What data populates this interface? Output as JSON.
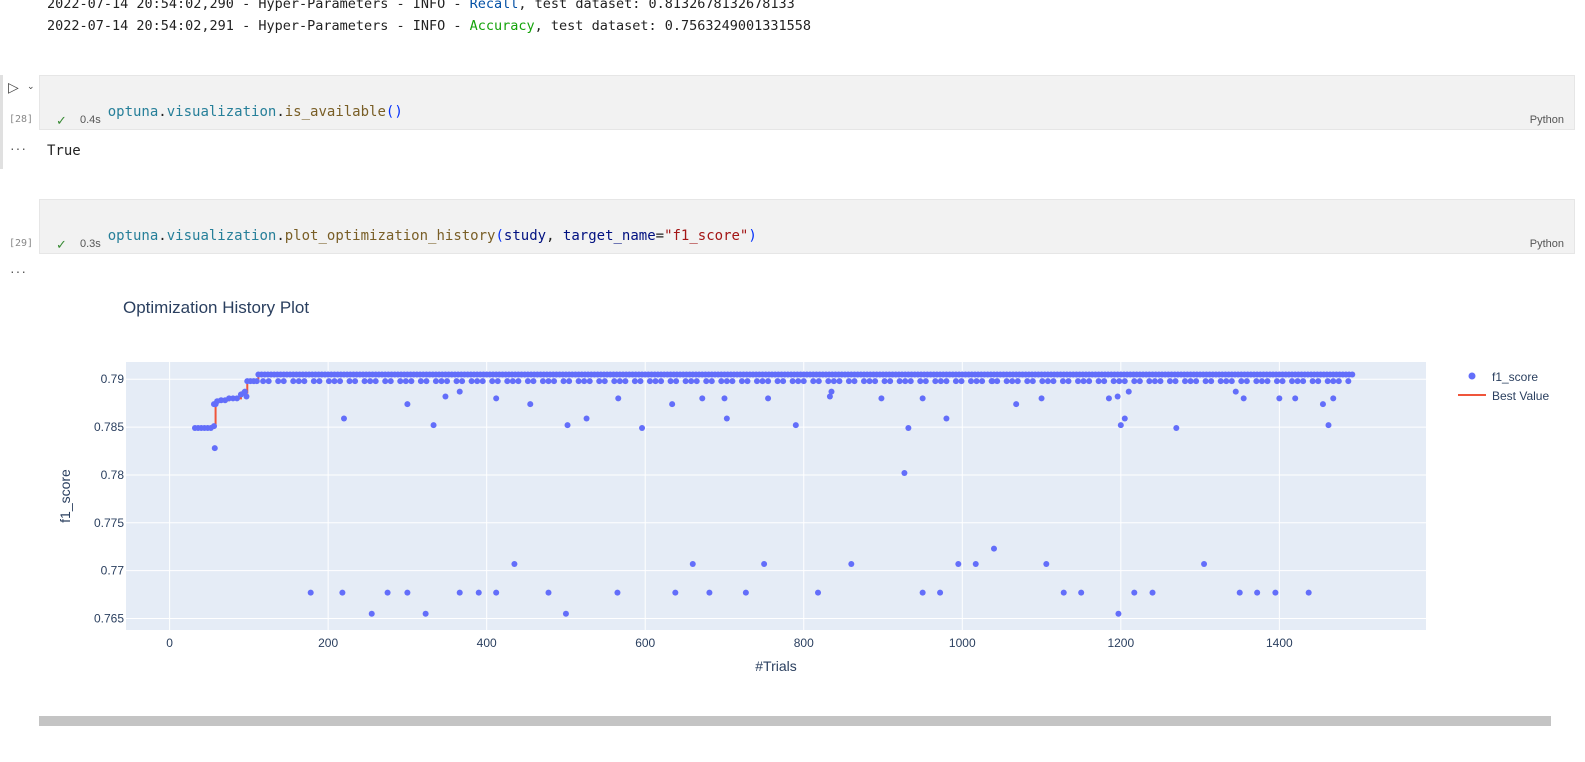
{
  "log": {
    "line1": {
      "prefix": "2022-07-14 20:54:02,290 - Hyper-Parameters - INFO - ",
      "metric": "Recall",
      "suffix": ", test dataset: 0.8132678132678133"
    },
    "line2": {
      "prefix": "2022-07-14 20:54:02,291 - Hyper-Parameters - INFO - ",
      "metric": "Accuracy",
      "suffix": ", test dataset: 0.7563249001331558"
    }
  },
  "cell28": {
    "exec_count": "[28]",
    "code": {
      "mod": "optuna",
      "dot1": ".",
      "sub": "visualization",
      "dot2": ".",
      "fn": "is_available",
      "parens": "()"
    },
    "duration": "0.4s",
    "language": "Python",
    "output": "True"
  },
  "cell29": {
    "exec_count": "[29]",
    "code": {
      "mod": "optuna",
      "dot1": ".",
      "sub": "visualization",
      "dot2": ".",
      "fn": "plot_optimization_history",
      "open": "(",
      "arg1": "study",
      "comma": ", ",
      "kw": "target_name",
      "eq": "=",
      "str": "\"f1_score\"",
      "close": ")"
    },
    "duration": "0.3s",
    "language": "Python"
  },
  "output_dots": "···",
  "colors": {
    "points": "#636efa",
    "best_line": "#ef553b",
    "plot_bg": "#e5ecf6",
    "check": "#388a34"
  },
  "chart_data": {
    "type": "scatter",
    "title": "Optimization History Plot",
    "xlabel": "#Trials",
    "ylabel": "f1_score",
    "xlim": [
      -55,
      1585
    ],
    "ylim": [
      0.7638,
      0.7918
    ],
    "x_ticks": [
      0,
      200,
      400,
      600,
      800,
      1000,
      1200,
      1400
    ],
    "y_ticks": [
      0.765,
      0.77,
      0.775,
      0.78,
      0.785,
      0.79
    ],
    "y_tick_labels": [
      "0.765",
      "0.77",
      "0.775",
      "0.78",
      "0.785",
      "0.79"
    ],
    "legend": {
      "position": "top-right",
      "entries": [
        "f1_score",
        "Best Value"
      ]
    },
    "grid": true,
    "series": [
      {
        "name": "f1_score",
        "kind": "markers",
        "outliers": [
          [
            178,
            0.7677
          ],
          [
            218,
            0.7677
          ],
          [
            255,
            0.7655
          ],
          [
            275,
            0.7677
          ],
          [
            300,
            0.7677
          ],
          [
            323,
            0.7655
          ],
          [
            366,
            0.7677
          ],
          [
            390,
            0.7677
          ],
          [
            412,
            0.7677
          ],
          [
            435,
            0.7707
          ],
          [
            478,
            0.7677
          ],
          [
            500,
            0.7655
          ],
          [
            565,
            0.7677
          ],
          [
            638,
            0.7677
          ],
          [
            660,
            0.7707
          ],
          [
            681,
            0.7677
          ],
          [
            727,
            0.7677
          ],
          [
            750,
            0.7707
          ],
          [
            818,
            0.7677
          ],
          [
            860,
            0.7707
          ],
          [
            927,
            0.7802
          ],
          [
            950,
            0.7677
          ],
          [
            972,
            0.7677
          ],
          [
            995,
            0.7707
          ],
          [
            1017,
            0.7707
          ],
          [
            1040,
            0.7723
          ],
          [
            1106,
            0.7707
          ],
          [
            1128,
            0.7677
          ],
          [
            1150,
            0.7677
          ],
          [
            1197,
            0.7655
          ],
          [
            1217,
            0.7677
          ],
          [
            1240,
            0.7677
          ],
          [
            1305,
            0.7707
          ],
          [
            1350,
            0.7677
          ],
          [
            1372,
            0.7677
          ],
          [
            1395,
            0.7677
          ],
          [
            1437,
            0.7677
          ],
          [
            220,
            0.7859
          ],
          [
            333,
            0.7852
          ],
          [
            502,
            0.7852
          ],
          [
            596,
            0.7849
          ],
          [
            703,
            0.7859
          ],
          [
            790,
            0.7852
          ],
          [
            932,
            0.7849
          ],
          [
            980,
            0.7859
          ],
          [
            1200,
            0.7852
          ],
          [
            1205,
            0.7859
          ],
          [
            1270,
            0.7849
          ],
          [
            1462,
            0.7852
          ],
          [
            57,
            0.7828
          ],
          [
            56,
            0.7874
          ],
          [
            300,
            0.7874
          ],
          [
            455,
            0.7874
          ],
          [
            566,
            0.788
          ],
          [
            634,
            0.7874
          ],
          [
            672,
            0.788
          ],
          [
            700,
            0.788
          ],
          [
            833,
            0.7882
          ],
          [
            835,
            0.7887
          ],
          [
            898,
            0.788
          ],
          [
            950,
            0.788
          ],
          [
            1068,
            0.7874
          ],
          [
            1100,
            0.788
          ],
          [
            1185,
            0.788
          ],
          [
            1196,
            0.7882
          ],
          [
            1210,
            0.7887
          ],
          [
            1345,
            0.7887
          ],
          [
            1355,
            0.788
          ],
          [
            1400,
            0.788
          ],
          [
            1420,
            0.788
          ],
          [
            1455,
            0.7874
          ],
          [
            1468,
            0.788
          ],
          [
            348,
            0.7882
          ],
          [
            366,
            0.7887
          ],
          [
            412,
            0.788
          ],
          [
            526,
            0.7859
          ],
          [
            755,
            0.788
          ],
          [
            1038,
            0.7898
          ],
          [
            95,
            0.7887
          ],
          [
            97,
            0.7882
          ]
        ],
        "bulk_levels": [
          0.7898,
          0.7905
        ],
        "early_points": [
          [
            32,
            0.7849
          ],
          [
            36,
            0.7849
          ],
          [
            40,
            0.7849
          ],
          [
            44,
            0.7849
          ],
          [
            48,
            0.7849
          ],
          [
            52,
            0.7849
          ],
          [
            56,
            0.7851
          ],
          [
            58,
            0.7874
          ],
          [
            60,
            0.7877
          ],
          [
            65,
            0.7878
          ],
          [
            70,
            0.7878
          ],
          [
            75,
            0.788
          ],
          [
            80,
            0.788
          ],
          [
            85,
            0.788
          ],
          [
            90,
            0.7884
          ],
          [
            94,
            0.7886
          ],
          [
            98,
            0.7898
          ],
          [
            102,
            0.7898
          ],
          [
            106,
            0.7898
          ],
          [
            110,
            0.7898
          ]
        ]
      },
      {
        "name": "Best Value",
        "kind": "step-line",
        "x": [
          32,
          56,
          58,
          60,
          75,
          90,
          98,
          112,
          1495
        ],
        "y": [
          0.7849,
          0.7851,
          0.7874,
          0.7878,
          0.788,
          0.7886,
          0.7898,
          0.7906,
          0.7906
        ]
      }
    ],
    "x_range_trials": [
      32,
      1495
    ]
  }
}
